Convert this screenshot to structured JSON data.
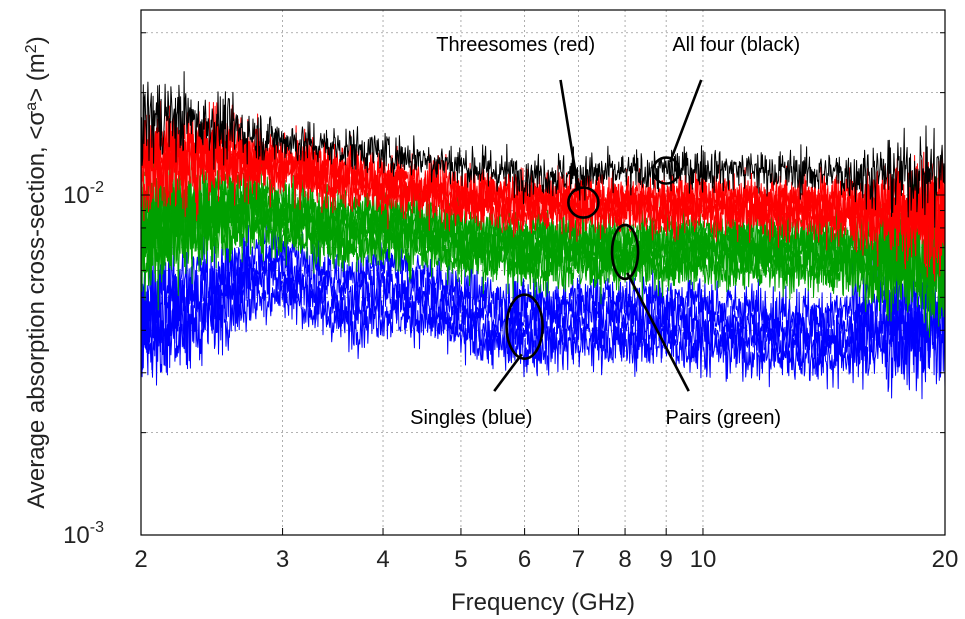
{
  "chart_data": {
    "type": "line",
    "title": "",
    "xlabel": "Frequency (GHz)",
    "ylabel_main": "Average absorption cross-section, <σ",
    "ylabel_sup": "a",
    "ylabel_after": "> (m",
    "ylabel_sup2": "2",
    "ylabel_end": ")",
    "xscale": "log",
    "yscale": "log",
    "xlim": [
      2,
      20
    ],
    "ylim": [
      0.001,
      0.035
    ],
    "grid": true,
    "xticks": [
      {
        "value": 2,
        "label": "2"
      },
      {
        "value": 3,
        "label": "3"
      },
      {
        "value": 4,
        "label": "4"
      },
      {
        "value": 5,
        "label": "5"
      },
      {
        "value": 6,
        "label": "6"
      },
      {
        "value": 7,
        "label": "7"
      },
      {
        "value": 8,
        "label": "8"
      },
      {
        "value": 9,
        "label": "9"
      },
      {
        "value": 10,
        "label": "10"
      },
      {
        "value": 20,
        "label": "20"
      }
    ],
    "yticks": [
      {
        "value": 0.001,
        "base": "10",
        "exp": "-3"
      },
      {
        "value": 0.01,
        "base": "10",
        "exp": "-2"
      }
    ],
    "series": [
      {
        "name": "Singles (blue)",
        "color": "#0000ff",
        "count": 4,
        "x": [
          2,
          2.2,
          2.5,
          2.8,
          3,
          3.3,
          3.7,
          4,
          4.5,
          5,
          5.5,
          6,
          7,
          8,
          9,
          10,
          12,
          14,
          17,
          20
        ],
        "values": [
          0.0042,
          0.0046,
          0.005,
          0.0058,
          0.006,
          0.0052,
          0.0048,
          0.0052,
          0.005,
          0.0044,
          0.0042,
          0.0041,
          0.0042,
          0.0042,
          0.0042,
          0.0041,
          0.0039,
          0.0038,
          0.0041,
          0.0043
        ],
        "offsets": [
          1.18,
          1.06,
          0.95,
          0.86
        ]
      },
      {
        "name": "Pairs (green)",
        "color": "#00a000",
        "count": 6,
        "x": [
          2,
          2.2,
          2.5,
          2.8,
          3,
          3.3,
          3.7,
          4,
          4.5,
          5,
          5.5,
          6,
          7,
          8,
          9,
          10,
          12,
          14,
          17,
          20
        ],
        "values": [
          0.0078,
          0.0085,
          0.009,
          0.0092,
          0.0088,
          0.0082,
          0.008,
          0.0082,
          0.0078,
          0.0074,
          0.0072,
          0.007,
          0.007,
          0.0068,
          0.0069,
          0.007,
          0.0069,
          0.0068,
          0.0066,
          0.0064
        ],
        "offsets": [
          1.12,
          1.07,
          1.02,
          0.98,
          0.93,
          0.88
        ]
      },
      {
        "name": "Threesomes (red)",
        "color": "#ff0000",
        "count": 4,
        "x": [
          2,
          2.2,
          2.5,
          2.8,
          3,
          3.3,
          3.7,
          4,
          4.5,
          5,
          5.5,
          6,
          7,
          8,
          9,
          10,
          12,
          14,
          17,
          20
        ],
        "values": [
          0.0125,
          0.013,
          0.0132,
          0.0128,
          0.0122,
          0.0118,
          0.0112,
          0.0108,
          0.0103,
          0.01,
          0.0097,
          0.0095,
          0.0095,
          0.0095,
          0.0094,
          0.0095,
          0.0093,
          0.0092,
          0.009,
          0.0088
        ],
        "offsets": [
          1.06,
          1.02,
          0.98,
          0.94
        ]
      },
      {
        "name": "All four (black)",
        "color": "#000000",
        "count": 1,
        "x": [
          2,
          2.2,
          2.5,
          2.8,
          3,
          3.3,
          3.7,
          4,
          4.5,
          5,
          5.5,
          6,
          7,
          8,
          9,
          10,
          12,
          14,
          17,
          20
        ],
        "values": [
          0.0165,
          0.017,
          0.016,
          0.015,
          0.0145,
          0.014,
          0.0137,
          0.0133,
          0.0128,
          0.0122,
          0.0118,
          0.0115,
          0.0115,
          0.0116,
          0.0118,
          0.012,
          0.0118,
          0.0116,
          0.0115,
          0.0117
        ],
        "offsets": [
          1.0
        ]
      }
    ],
    "annotations": [
      {
        "label": "Threesomes (red)",
        "text_x": 5.85,
        "text_y": 0.0265,
        "anchor": "middle",
        "ellipse": {
          "x": 7.1,
          "y": 0.0095,
          "rx": 15,
          "ry": 15
        },
        "line_from": {
          "x": 6.65,
          "y": 0.0218
        },
        "line_to": {
          "x": 7.0,
          "y": 0.0103
        }
      },
      {
        "label": "All four (black)",
        "text_x": 11.0,
        "text_y": 0.0265,
        "anchor": "middle",
        "ellipse": {
          "x": 9.0,
          "y": 0.0118,
          "rx": 13,
          "ry": 13
        },
        "line_from": {
          "x": 9.95,
          "y": 0.0218
        },
        "line_to": {
          "x": 9.1,
          "y": 0.0125
        }
      },
      {
        "label": "Singles (blue)",
        "text_x": 5.15,
        "text_y": 0.00212,
        "anchor": "middle",
        "ellipse": {
          "x": 6.0,
          "y": 0.0041,
          "rx": 18,
          "ry": 32
        },
        "line_from": {
          "x": 5.5,
          "y": 0.00265
        },
        "line_to": {
          "x": 5.95,
          "y": 0.0034
        }
      },
      {
        "label": "Pairs (green)",
        "text_x": 10.6,
        "text_y": 0.00212,
        "anchor": "middle",
        "ellipse": {
          "x": 8.0,
          "y": 0.0068,
          "rx": 13,
          "ry": 27
        },
        "line_from": {
          "x": 8.05,
          "y": 0.0059
        },
        "line_to": {
          "x": 9.6,
          "y": 0.00265
        }
      }
    ]
  }
}
